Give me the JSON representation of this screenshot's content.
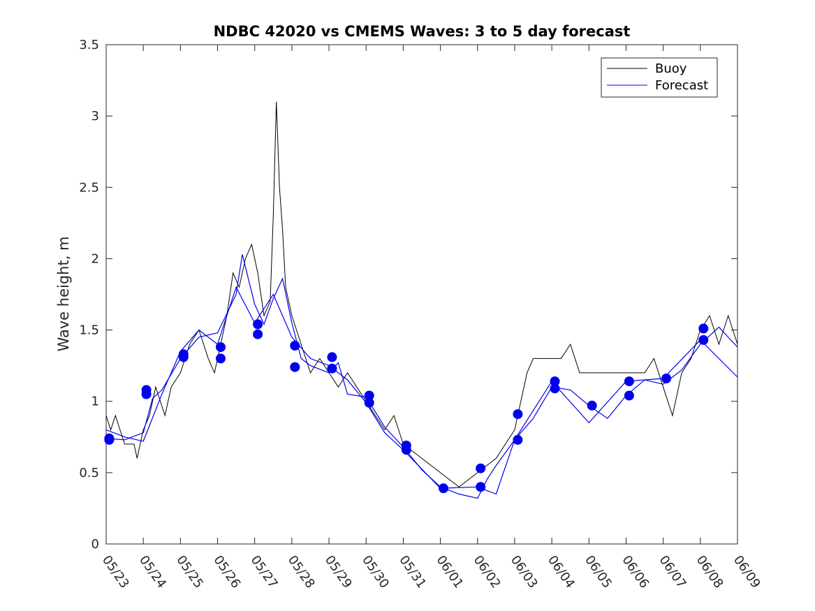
{
  "chart_data": {
    "type": "line",
    "title": "NDBC 42020 vs CMEMS Waves: 3 to 5 day forecast",
    "xlabel": "",
    "ylabel": "Wave height, m",
    "xlim": [
      "05/23",
      "06/09"
    ],
    "ylim": [
      0,
      3.5
    ],
    "xticks": [
      "05/23",
      "05/24",
      "05/25",
      "05/26",
      "05/27",
      "05/28",
      "05/29",
      "05/30",
      "05/31",
      "06/01",
      "06/02",
      "06/03",
      "06/04",
      "06/05",
      "06/06",
      "06/07",
      "06/08",
      "06/09"
    ],
    "yticks": [
      "0",
      "0.5",
      "1",
      "1.5",
      "2",
      "2.5",
      "3",
      "3.5"
    ],
    "grid": false,
    "legend_position": "top-right",
    "colors": {
      "buoy": "#000000",
      "forecast": "#0000ee"
    },
    "series": [
      {
        "name": "Buoy",
        "points": [
          [
            "05/23 00:00",
            0.9
          ],
          [
            "05/23 03:00",
            0.8
          ],
          [
            "05/23 06:00",
            0.9
          ],
          [
            "05/23 09:00",
            0.8
          ],
          [
            "05/23 12:00",
            0.7
          ],
          [
            "05/23 18:00",
            0.7
          ],
          [
            "05/23 20:00",
            0.6
          ],
          [
            "05/23 22:00",
            0.7
          ],
          [
            "05/24 00:00",
            0.8
          ],
          [
            "05/24 04:00",
            0.9
          ],
          [
            "05/24 08:00",
            1.1
          ],
          [
            "05/24 14:00",
            0.9
          ],
          [
            "05/24 18:00",
            1.1
          ],
          [
            "05/25 00:00",
            1.2
          ],
          [
            "05/25 06:00",
            1.4
          ],
          [
            "05/25 12:00",
            1.5
          ],
          [
            "05/25 18:00",
            1.3
          ],
          [
            "05/25 22:00",
            1.2
          ],
          [
            "05/26 02:00",
            1.4
          ],
          [
            "05/26 06:00",
            1.6
          ],
          [
            "05/26 10:00",
            1.9
          ],
          [
            "05/26 14:00",
            1.8
          ],
          [
            "05/26 18:00",
            2.0
          ],
          [
            "05/26 22:00",
            2.1
          ],
          [
            "05/27 02:00",
            1.9
          ],
          [
            "05/27 06:00",
            1.6
          ],
          [
            "05/27 10:00",
            1.7
          ],
          [
            "05/27 12:00",
            2.3
          ],
          [
            "05/27 14:00",
            3.1
          ],
          [
            "05/27 16:00",
            2.5
          ],
          [
            "05/27 18:00",
            2.2
          ],
          [
            "05/27 20:00",
            1.8
          ],
          [
            "05/28 00:00",
            1.6
          ],
          [
            "05/28 06:00",
            1.4
          ],
          [
            "05/28 12:00",
            1.2
          ],
          [
            "05/28 18:00",
            1.3
          ],
          [
            "05/29 00:00",
            1.2
          ],
          [
            "05/29 06:00",
            1.1
          ],
          [
            "05/29 12:00",
            1.2
          ],
          [
            "05/29 18:00",
            1.1
          ],
          [
            "05/30 00:00",
            1.0
          ],
          [
            "05/30 06:00",
            0.9
          ],
          [
            "05/30 12:00",
            0.8
          ],
          [
            "05/30 18:00",
            0.9
          ],
          [
            "05/31 00:00",
            0.7
          ],
          [
            "05/31 12:00",
            0.6
          ],
          [
            "06/01 00:00",
            0.5
          ],
          [
            "06/01 12:00",
            0.4
          ],
          [
            "06/02 00:00",
            0.5
          ],
          [
            "06/02 12:00",
            0.6
          ],
          [
            "06/03 00:00",
            0.8
          ],
          [
            "06/03 08:00",
            1.2
          ],
          [
            "06/03 12:00",
            1.3
          ],
          [
            "06/04 00:00",
            1.3
          ],
          [
            "06/04 06:00",
            1.3
          ],
          [
            "06/04 12:00",
            1.4
          ],
          [
            "06/04 18:00",
            1.2
          ],
          [
            "06/05 00:00",
            1.2
          ],
          [
            "06/05 12:00",
            1.2
          ],
          [
            "06/06 00:00",
            1.2
          ],
          [
            "06/06 12:00",
            1.2
          ],
          [
            "06/06 18:00",
            1.3
          ],
          [
            "06/07 00:00",
            1.1
          ],
          [
            "06/07 06:00",
            0.9
          ],
          [
            "06/07 12:00",
            1.2
          ],
          [
            "06/07 18:00",
            1.3
          ],
          [
            "06/08 00:00",
            1.5
          ],
          [
            "06/08 06:00",
            1.6
          ],
          [
            "06/08 12:00",
            1.4
          ],
          [
            "06/08 18:00",
            1.6
          ],
          [
            "06/09 00:00",
            1.4
          ]
        ]
      },
      {
        "name": "Forecast",
        "points": [
          [
            "05/23 00:00",
            0.74
          ],
          [
            "05/23 12:00",
            0.73
          ],
          [
            "05/24 00:00",
            0.78
          ],
          [
            "05/24 06:00",
            1.02
          ],
          [
            "05/24 12:00",
            1.08
          ],
          [
            "05/25 00:00",
            1.3
          ],
          [
            "05/25 12:00",
            1.45
          ],
          [
            "05/26 00:00",
            1.48
          ],
          [
            "05/26 12:00",
            1.75
          ],
          [
            "05/26 16:00",
            2.03
          ],
          [
            "05/27 00:00",
            1.68
          ],
          [
            "05/27 06:00",
            1.54
          ],
          [
            "05/27 12:00",
            1.72
          ],
          [
            "05/27 18:00",
            1.86
          ],
          [
            "05/28 00:00",
            1.55
          ],
          [
            "05/28 06:00",
            1.3
          ],
          [
            "05/28 12:00",
            1.25
          ],
          [
            "05/29 00:00",
            1.2
          ],
          [
            "05/29 06:00",
            1.27
          ],
          [
            "05/29 12:00",
            1.05
          ],
          [
            "05/30 00:00",
            1.03
          ],
          [
            "05/30 12:00",
            0.82
          ],
          [
            "05/31 00:00",
            0.68
          ],
          [
            "05/31 12:00",
            0.52
          ],
          [
            "06/01 00:00",
            0.4
          ],
          [
            "06/01 12:00",
            0.35
          ],
          [
            "06/02 00:00",
            0.32
          ],
          [
            "06/02 06:00",
            0.45
          ],
          [
            "06/02 12:00",
            0.55
          ],
          [
            "06/03 00:00",
            0.73
          ],
          [
            "06/03 12:00",
            0.88
          ],
          [
            "06/04 00:00",
            1.1
          ],
          [
            "06/04 12:00",
            1.08
          ],
          [
            "06/05 00:00",
            0.97
          ],
          [
            "06/05 12:00",
            0.88
          ],
          [
            "06/06 00:00",
            1.04
          ],
          [
            "06/06 12:00",
            1.15
          ],
          [
            "06/07 00:00",
            1.12
          ],
          [
            "06/07 12:00",
            1.22
          ],
          [
            "06/08 00:00",
            1.4
          ],
          [
            "06/08 12:00",
            1.52
          ],
          [
            "06/09 00:00",
            1.38
          ]
        ]
      },
      {
        "name": "",
        "points": [
          [
            "05/23 00:00",
            0.8
          ],
          [
            "05/23 12:00",
            0.75
          ],
          [
            "05/24 00:00",
            0.72
          ],
          [
            "05/24 12:00",
            1.05
          ],
          [
            "05/25 00:00",
            1.35
          ],
          [
            "05/25 12:00",
            1.5
          ],
          [
            "05/26 00:00",
            1.4
          ],
          [
            "05/26 12:00",
            1.8
          ],
          [
            "05/27 00:00",
            1.55
          ],
          [
            "05/27 12:00",
            1.75
          ],
          [
            "05/28 00:00",
            1.45
          ],
          [
            "05/28 12:00",
            1.3
          ],
          [
            "05/29 00:00",
            1.25
          ],
          [
            "05/29 12:00",
            1.15
          ],
          [
            "05/30 00:00",
            0.99
          ],
          [
            "05/30 12:00",
            0.78
          ],
          [
            "05/31 00:00",
            0.66
          ],
          [
            "06/01 00:00",
            0.39
          ],
          [
            "06/02 00:00",
            0.4
          ],
          [
            "06/02 12:00",
            0.35
          ],
          [
            "06/03 00:00",
            0.73
          ],
          [
            "06/04 00:00",
            1.14
          ],
          [
            "06/05 00:00",
            0.85
          ],
          [
            "06/06 00:00",
            1.14
          ],
          [
            "06/07 00:00",
            1.16
          ],
          [
            "06/08 00:00",
            1.43
          ],
          [
            "06/09 00:00",
            1.17
          ]
        ]
      }
    ],
    "markers": {
      "name": "",
      "points": [
        [
          "05/23 02:00",
          0.74
        ],
        [
          "05/23 02:00",
          0.73
        ],
        [
          "05/24 02:00",
          1.08
        ],
        [
          "05/24 02:00",
          1.05
        ],
        [
          "05/25 02:00",
          1.33
        ],
        [
          "05/25 02:00",
          1.31
        ],
        [
          "05/26 02:00",
          1.38
        ],
        [
          "05/26 02:00",
          1.3
        ],
        [
          "05/27 02:00",
          1.54
        ],
        [
          "05/27 02:00",
          1.47
        ],
        [
          "05/28 02:00",
          1.39
        ],
        [
          "05/28 02:00",
          1.24
        ],
        [
          "05/29 02:00",
          1.31
        ],
        [
          "05/29 02:00",
          1.23
        ],
        [
          "05/30 02:00",
          1.04
        ],
        [
          "05/30 02:00",
          0.99
        ],
        [
          "05/31 02:00",
          0.69
        ],
        [
          "05/31 02:00",
          0.66
        ],
        [
          "06/01 02:00",
          0.39
        ],
        [
          "06/02 02:00",
          0.53
        ],
        [
          "06/02 02:00",
          0.4
        ],
        [
          "06/03 02:00",
          0.91
        ],
        [
          "06/03 02:00",
          0.73
        ],
        [
          "06/04 02:00",
          1.14
        ],
        [
          "06/04 02:00",
          1.09
        ],
        [
          "06/05 02:00",
          0.97
        ],
        [
          "06/06 02:00",
          1.14
        ],
        [
          "06/06 02:00",
          1.04
        ],
        [
          "06/07 02:00",
          1.16
        ],
        [
          "06/08 02:00",
          1.51
        ],
        [
          "06/08 02:00",
          1.43
        ]
      ]
    }
  }
}
